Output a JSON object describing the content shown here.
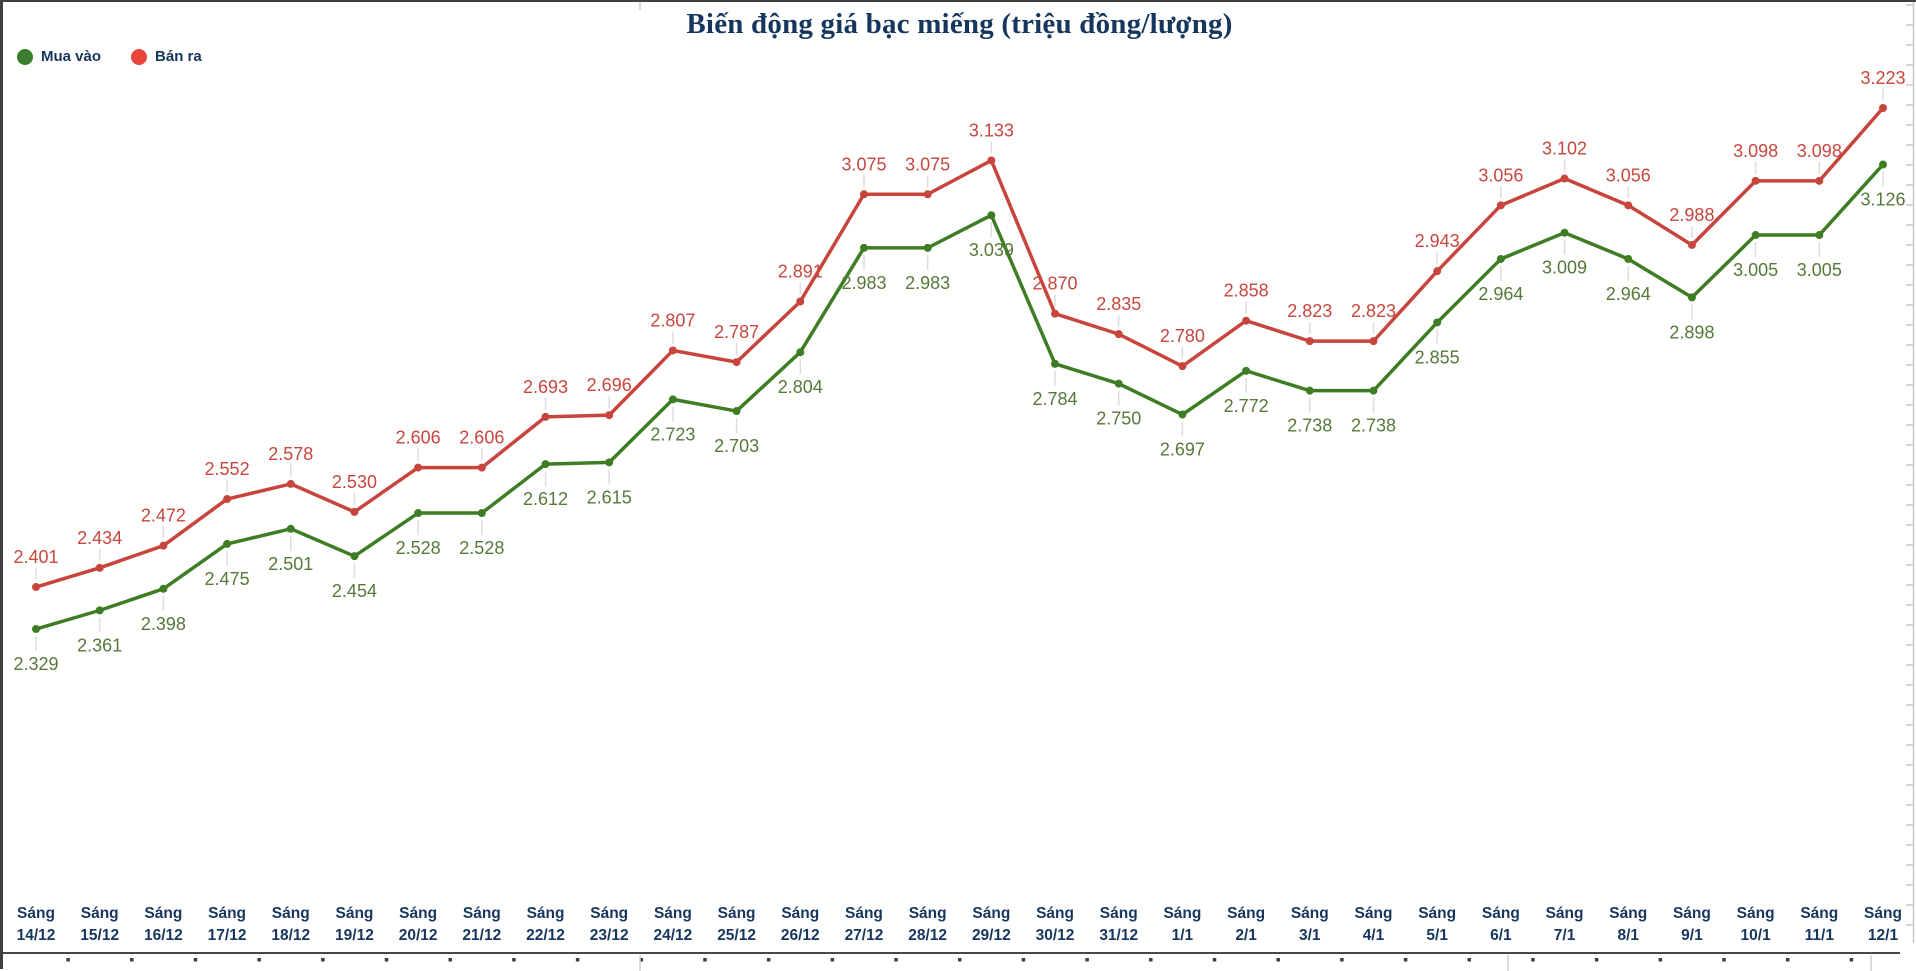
{
  "chart_data": {
    "type": "line",
    "title": "Biến động giá bạc miếng (triệu đồng/lượng)",
    "x_prefix": "Sáng",
    "categories": [
      "14/12",
      "15/12",
      "16/12",
      "17/12",
      "18/12",
      "19/12",
      "20/12",
      "21/12",
      "22/12",
      "23/12",
      "24/12",
      "25/12",
      "26/12",
      "27/12",
      "28/12",
      "29/12",
      "30/12",
      "31/12",
      "1/1",
      "2/1",
      "3/1",
      "4/1",
      "5/1",
      "6/1",
      "7/1",
      "8/1",
      "9/1",
      "10/1",
      "11/1",
      "12/1"
    ],
    "series": [
      {
        "name": "Mua vào",
        "line_color": "#3e7d23",
        "label_color": "#56793a",
        "legend_color": "#3a7d2c",
        "label_position": "below",
        "values": [
          2.329,
          2.361,
          2.398,
          2.475,
          2.501,
          2.454,
          2.528,
          2.528,
          2.612,
          2.615,
          2.723,
          2.703,
          2.804,
          2.983,
          2.983,
          3.039,
          2.784,
          2.75,
          2.697,
          2.772,
          2.738,
          2.738,
          2.855,
          2.964,
          3.009,
          2.964,
          2.898,
          3.005,
          3.005,
          3.126
        ]
      },
      {
        "name": "Bán ra",
        "line_color": "#c8453d",
        "label_color": "#c8463d",
        "legend_color": "#e8463c",
        "label_position": "above",
        "values": [
          2.401,
          2.434,
          2.472,
          2.552,
          2.578,
          2.53,
          2.606,
          2.606,
          2.693,
          2.696,
          2.807,
          2.787,
          2.891,
          3.075,
          3.075,
          3.133,
          2.87,
          2.835,
          2.78,
          2.858,
          2.823,
          2.823,
          2.943,
          3.056,
          3.102,
          3.056,
          2.988,
          3.098,
          3.098,
          3.223
        ]
      }
    ],
    "value_decimals": 3,
    "ylim": [
      2.25,
      3.3
    ],
    "grid": false,
    "legend_position": "top-left",
    "axis_text_color": "#17365d",
    "leader_line_color": "#dddddd"
  },
  "legend": [
    {
      "label": "Mua vào",
      "color": "#3a7d2c"
    },
    {
      "label": "Bán ra",
      "color": "#e8463c"
    }
  ]
}
